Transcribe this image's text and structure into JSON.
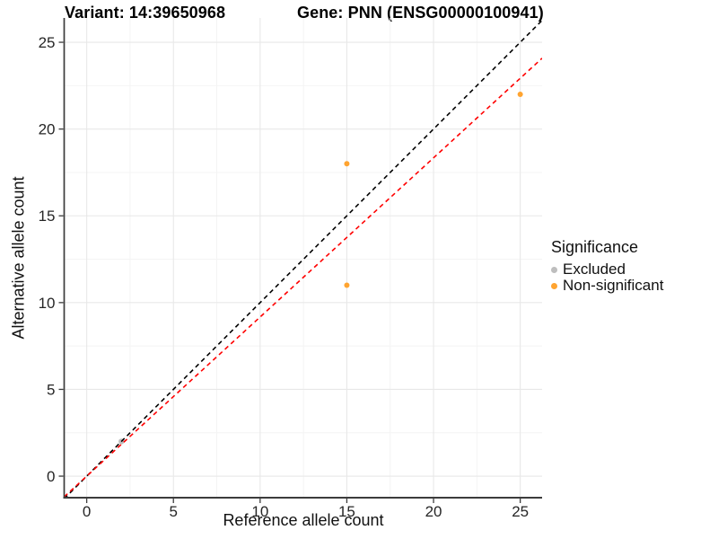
{
  "figure": {
    "background": "#FFFFFF"
  },
  "chart_data": {
    "type": "scatter",
    "title_left": "Variant: 14:39650968",
    "title_right": "Gene: PNN (ENSG00000100941)",
    "xlabel": "Reference allele count",
    "ylabel": "Alternative allele count",
    "x_ticks": [
      0,
      5,
      10,
      15,
      20,
      25
    ],
    "y_ticks": [
      0,
      5,
      10,
      15,
      20,
      25
    ],
    "x_minor": [
      2.5,
      7.5,
      12.5,
      17.5,
      22.5
    ],
    "y_minor": [
      2.5,
      7.5,
      12.5,
      17.5,
      22.5
    ],
    "x_range": [
      -1.3,
      26.26
    ],
    "y_range": [
      -1.24,
      26.4
    ],
    "grid": "on",
    "series": [
      {
        "name": "Excluded",
        "color": "#BEBEBE",
        "point_radius": 3.2,
        "points": [
          [
            2,
            2
          ]
        ]
      },
      {
        "name": "Non-significant",
        "color": "#FFA430",
        "point_radius": 3.0,
        "points": [
          [
            15,
            11
          ],
          [
            15,
            18
          ],
          [
            25,
            22
          ]
        ]
      }
    ],
    "lines": [
      {
        "name": "identity-line",
        "slope": 1,
        "intercept": 0,
        "color": "#000000",
        "style": "dashed"
      },
      {
        "name": "regression-line",
        "slope": 0.917,
        "intercept": 0,
        "color": "#FF0000",
        "style": "dashed"
      }
    ],
    "legend": {
      "title": "Significance",
      "position": "right",
      "items": [
        {
          "label": "Excluded",
          "color": "#BEBEBE"
        },
        {
          "label": "Non-significant",
          "color": "#FFA430"
        }
      ]
    },
    "style_colors": {
      "axis_line": "#3C3C3C",
      "tick_label": "#262626",
      "grid_major": "#E8E8E8",
      "grid_minor": "#F4F4F4"
    }
  }
}
